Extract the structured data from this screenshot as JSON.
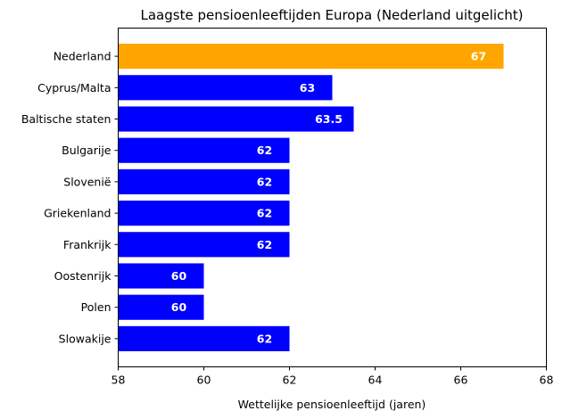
{
  "chart_data": {
    "type": "bar",
    "orientation": "horizontal",
    "title": "Laagste pensioenleeftijden Europa (Nederland uitgelicht)",
    "xlabel": "Wettelijke pensioenleeftijd (jaren)",
    "ylabel": "",
    "xlim": [
      58,
      68
    ],
    "xticks": [
      58,
      60,
      62,
      64,
      66,
      68
    ],
    "categories": [
      "Nederland",
      "Cyprus/Malta",
      "Baltische staten",
      "Bulgarije",
      "Slovenië",
      "Griekenland",
      "Frankrijk",
      "Oostenrijk",
      "Polen",
      "Slowakije"
    ],
    "values": [
      67,
      63,
      63.5,
      62,
      62,
      62,
      62,
      60,
      60,
      62
    ],
    "value_labels": [
      "67",
      "63",
      "63.5",
      "62",
      "62",
      "62",
      "62",
      "60",
      "60",
      "62"
    ],
    "highlight_category": "Nederland",
    "colors": {
      "highlight": "#FFA500",
      "default": "#0000FF",
      "label_text": "#FFFFFF"
    },
    "grid": false,
    "legend": "none"
  }
}
